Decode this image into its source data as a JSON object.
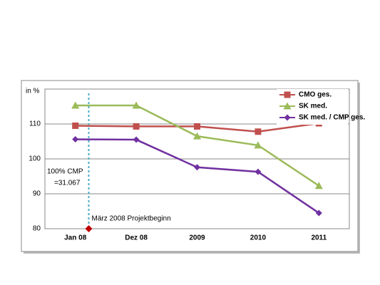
{
  "chart_data": {
    "type": "line",
    "y_label": "in %",
    "categories": [
      "Jan 08",
      "Dez 08",
      "2009",
      "2010",
      "2011"
    ],
    "series": [
      {
        "name": "CMO ges.",
        "color": "#c0504d",
        "marker": "square",
        "values": [
          109.5,
          109.3,
          109.3,
          107.8,
          110.2
        ]
      },
      {
        "name": "SK med.",
        "color": "#9bbb59",
        "marker": "triangle",
        "values": [
          115.3,
          115.3,
          106.5,
          103.9,
          92.3
        ]
      },
      {
        "name": "SK med. / CMP ges.",
        "color": "#7030a0",
        "marker": "diamond",
        "values": [
          105.6,
          105.5,
          97.6,
          96.3,
          84.5
        ]
      }
    ],
    "ylim": [
      80,
      120
    ],
    "yticks": [
      80,
      90,
      100,
      110
    ],
    "grid": true,
    "legend": "top-right",
    "annotations": {
      "note_line1": "100% CMP",
      "note_line2": "=31.067",
      "start_label": "März 2008 Projektbeginn",
      "start_marker": {
        "value": 80,
        "color": "#c00000"
      },
      "start_line_color": "#4bacc6"
    }
  }
}
